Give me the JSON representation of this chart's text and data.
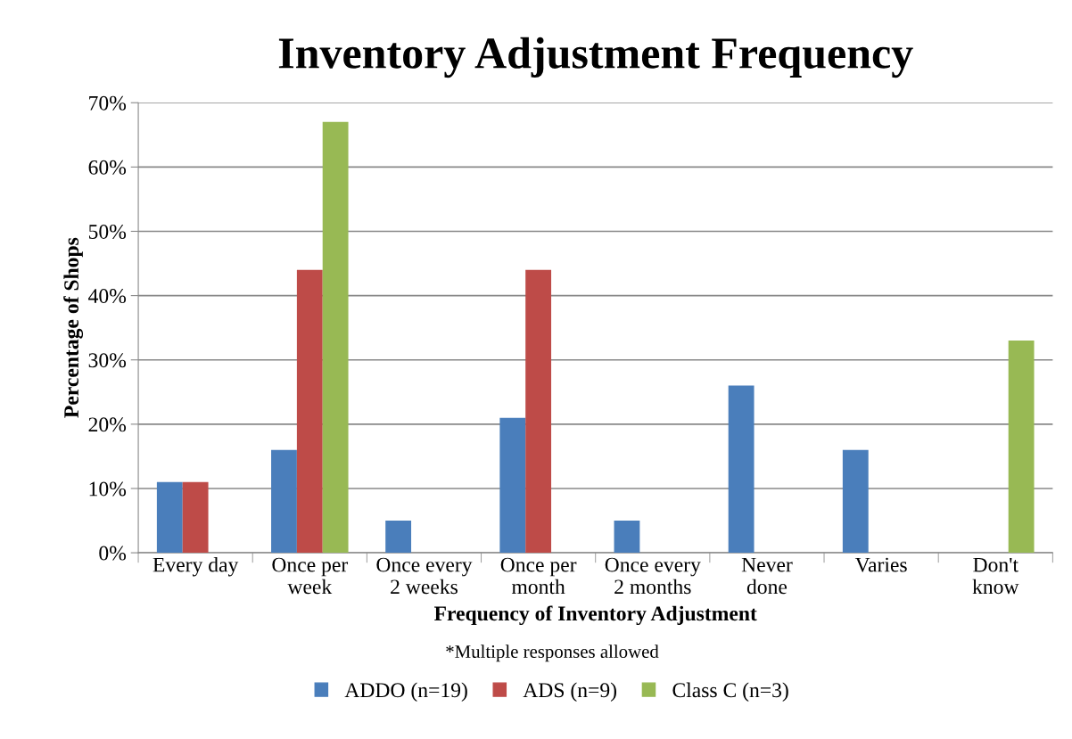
{
  "chart_data": {
    "type": "bar",
    "title": "Inventory Adjustment Frequency",
    "xlabel": "Frequency of Inventory Adjustment",
    "ylabel": "Percentage of Shops",
    "categories": [
      "Every day",
      "Once per\nweek",
      "Once every\n2 weeks",
      "Once per\nmonth",
      "Once every\n2 months",
      "Never\ndone",
      "Varies",
      "Don't\nknow"
    ],
    "series": [
      {
        "name": "ADDO (n=19)",
        "color": "#4a7ebb",
        "values": [
          11,
          16,
          5,
          21,
          5,
          26,
          16,
          null
        ]
      },
      {
        "name": "ADS (n=9)",
        "color": "#be4b48",
        "values": [
          11,
          44,
          null,
          44,
          null,
          null,
          null,
          null
        ]
      },
      {
        "name": "Class C (n=3)",
        "color": "#98b954",
        "values": [
          null,
          67,
          null,
          null,
          null,
          null,
          null,
          33
        ]
      }
    ],
    "ylim": [
      0,
      70
    ],
    "yticks": [
      {
        "value": 0,
        "label": "0%"
      },
      {
        "value": 10,
        "label": "10%"
      },
      {
        "value": 20,
        "label": "20%"
      },
      {
        "value": 30,
        "label": "30%"
      },
      {
        "value": 40,
        "label": "40%"
      },
      {
        "value": 50,
        "label": "50%"
      },
      {
        "value": 60,
        "label": "60%"
      },
      {
        "value": 70,
        "label": "70%"
      }
    ],
    "grid": "y",
    "legend": "bottom",
    "annotations": [
      "*Multiple responses allowed"
    ]
  }
}
